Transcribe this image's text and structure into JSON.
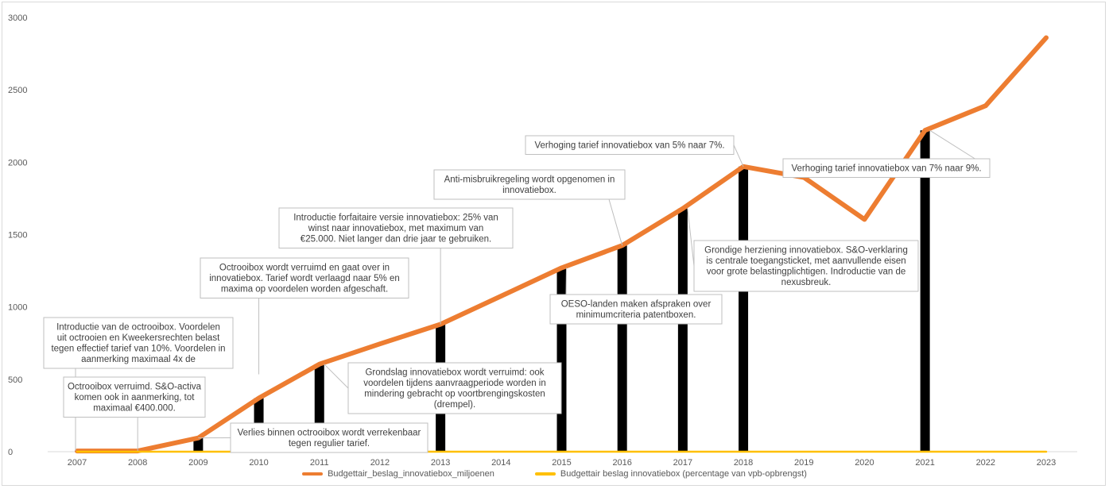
{
  "chart_data": {
    "type": "line",
    "x": [
      "2007",
      "2008",
      "2009",
      "2010",
      "2011",
      "2012",
      "2013",
      "2014",
      "2015",
      "2016",
      "2017",
      "2018",
      "2019",
      "2020",
      "2021",
      "2022",
      "2023"
    ],
    "ylim": [
      0,
      3000
    ],
    "yticks": [
      0,
      500,
      1000,
      1500,
      2000,
      2500,
      3000
    ],
    "grid": false,
    "legend_position": "bottom",
    "series": [
      {
        "name": "Budgettair_beslag_innovatiebox_miljoenen",
        "type": "line",
        "color": "#ED7D31",
        "values": [
          5,
          5,
          95,
          370,
          605,
          745,
          880,
          1075,
          1270,
          1425,
          1680,
          1970,
          1895,
          1605,
          2220,
          2390,
          2860
        ]
      },
      {
        "name": "Budgettair beslag innovatiebox (percentage van vpb-opbrengst)",
        "type": "line",
        "color": "#FFC000",
        "values": [
          0,
          0,
          0,
          0,
          0,
          0,
          0,
          0,
          0,
          0,
          0,
          0,
          0,
          0,
          0,
          0,
          0
        ]
      }
    ],
    "event_bars": [
      {
        "year": "2009",
        "value": 95
      },
      {
        "year": "2010",
        "value": 370
      },
      {
        "year": "2011",
        "value": 605
      },
      {
        "year": "2013",
        "value": 880
      },
      {
        "year": "2015",
        "value": 1270
      },
      {
        "year": "2016",
        "value": 1425
      },
      {
        "year": "2017",
        "value": 1680
      },
      {
        "year": "2018",
        "value": 1970
      },
      {
        "year": "2021",
        "value": 2220
      }
    ],
    "annotations": [
      {
        "year": "2007",
        "lines": [
          "Introductie van de octrooibox. Voordelen",
          "uit octrooien en Kweekersrechten belast",
          "tegen effectief tarief van 10%. Voordelen in",
          "aanmerking maximaal 4x de"
        ]
      },
      {
        "year": "2008",
        "lines": [
          "Octrooibox verruimd. S&O-activa",
          "komen ook in aanmerking, tot",
          "maximaal €400.000."
        ]
      },
      {
        "year": "2009",
        "lines": [
          "Verlies binnen octrooibox wordt verrekenbaar",
          "tegen regulier tarief."
        ]
      },
      {
        "year": "2010",
        "lines": [
          "Octrooibox wordt verruimd en gaat over in",
          "innovatiebox. Tarief wordt verlaagd naar 5% en",
          "maxima op voordelen worden afgeschaft."
        ]
      },
      {
        "year": "2011",
        "lines": [
          "Grondslag innovatiebox wordt verruimd: ook",
          "voordelen tijdens aanvraagperiode worden in",
          "mindering gebracht op voortbrengingskosten",
          "(drempel)."
        ]
      },
      {
        "year": "2013",
        "lines": [
          "Introductie forfaitaire versie innovatiebox: 25% van",
          "winst naar innovatiebox, met maximum van",
          "€25.000. Niet langer dan drie jaar te gebruiken."
        ]
      },
      {
        "year": "2015",
        "lines": [
          "OESO-landen maken afspraken over",
          "minimumcriteria patentboxen."
        ]
      },
      {
        "year": "2016",
        "lines": [
          "Anti-misbruikregeling wordt opgenomen in",
          "innovatiebox."
        ]
      },
      {
        "year": "2017",
        "lines": [
          "Grondige herziening innovatiebox. S&O-verklaring",
          "is centrale toegangsticket, met aanvullende eisen",
          "voor grote belastingplichtigen. Indroductie van de",
          "nexusbreuk."
        ]
      },
      {
        "year": "2018",
        "lines": [
          "Verhoging tarief innovatiebox van 5% naar 7%."
        ]
      },
      {
        "year": "2021",
        "lines": [
          "Verhoging tarief innovatiebox van 7% naar 9%."
        ]
      }
    ]
  }
}
